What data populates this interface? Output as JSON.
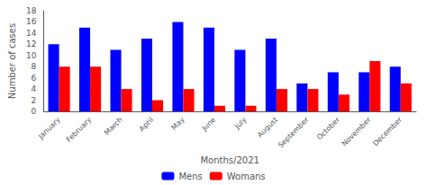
{
  "chart_data": {
    "type": "bar",
    "categories": [
      "January",
      "February",
      "March",
      "April",
      "May",
      "June",
      "July",
      "August",
      "September",
      "October",
      "November",
      "December"
    ],
    "series": [
      {
        "name": "Mens",
        "color": "#0000FF",
        "values": [
          12,
          15,
          11,
          13,
          16,
          15,
          11,
          13,
          5,
          7,
          7,
          8
        ]
      },
      {
        "name": "Womans",
        "color": "#FF0000",
        "values": [
          8,
          8,
          4,
          2,
          4,
          1,
          1,
          4,
          4,
          3,
          9,
          5
        ]
      }
    ],
    "xlabel": "Months/2021",
    "ylabel": "Number of cases",
    "ylim": [
      0,
      18
    ],
    "yticks": [
      0,
      2,
      4,
      6,
      8,
      10,
      12,
      14,
      16,
      18
    ],
    "legend": "bottom",
    "grid": false
  }
}
